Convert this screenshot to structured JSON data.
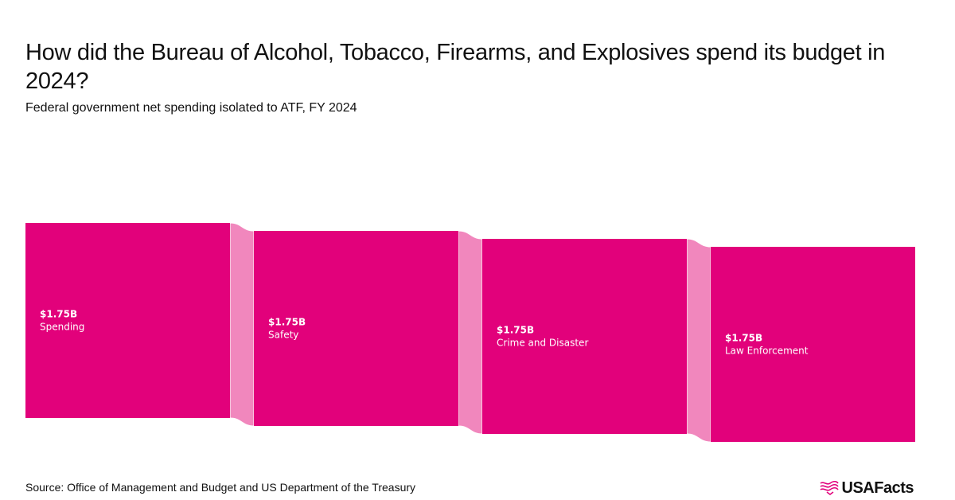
{
  "title": "How did the Bureau of Alcohol, Tobacco, Firearms, and Explosives spend its budget in 2024?",
  "subtitle": "Federal government net spending isolated to ATF, FY 2024",
  "source": "Source: Office of Management and Budget and US Department of the Treasury",
  "logo": {
    "text": "USAFacts",
    "icon": "usafacts-flag-icon"
  },
  "colors": {
    "node": "#e2017b",
    "link": "#f187bd",
    "link_border": "#ffffff"
  },
  "chart_data": {
    "type": "sankey",
    "unit": "billion USD",
    "nodes": [
      {
        "value_label": "$1.75B",
        "label": "Spending",
        "value": 1.75
      },
      {
        "value_label": "$1.75B",
        "label": "Safety",
        "value": 1.75
      },
      {
        "value_label": "$1.75B",
        "label": "Crime and Disaster",
        "value": 1.75
      },
      {
        "value_label": "$1.75B",
        "label": "Law Enforcement",
        "value": 1.75
      }
    ],
    "links": [
      {
        "source": "Spending",
        "target": "Safety",
        "value": 1.75
      },
      {
        "source": "Safety",
        "target": "Crime and Disaster",
        "value": 1.75
      },
      {
        "source": "Crime and Disaster",
        "target": "Law Enforcement",
        "value": 1.75
      }
    ]
  }
}
